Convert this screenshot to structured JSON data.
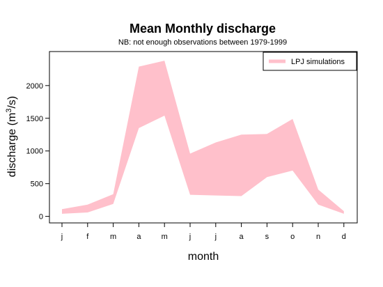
{
  "chart_data": {
    "type": "area",
    "title": "Mean Monthly discharge",
    "subtitle": "NB: not enough observations between 1979-1999",
    "xlabel": "month",
    "ylabel": {
      "prefix": "discharge (m",
      "superscript": "3",
      "suffix": "/s)"
    },
    "categories": [
      "j",
      "f",
      "m",
      "a",
      "m",
      "j",
      "j",
      "a",
      "s",
      "o",
      "n",
      "d"
    ],
    "ylim": [
      -100,
      2520
    ],
    "yticks": [
      "0",
      "500",
      "1000",
      "1500",
      "2000"
    ],
    "ytick_values": [
      0,
      500,
      1000,
      1500,
      2000
    ],
    "grid": false,
    "legend_position": "top-right",
    "series": [
      {
        "name": "LPJ simulations",
        "color": "#ffc0cb",
        "upper": [
          110,
          180,
          340,
          2290,
          2380,
          960,
          1130,
          1250,
          1260,
          1490,
          410,
          80
        ],
        "lower": [
          40,
          60,
          190,
          1350,
          1540,
          330,
          320,
          310,
          600,
          700,
          180,
          40
        ]
      }
    ]
  }
}
